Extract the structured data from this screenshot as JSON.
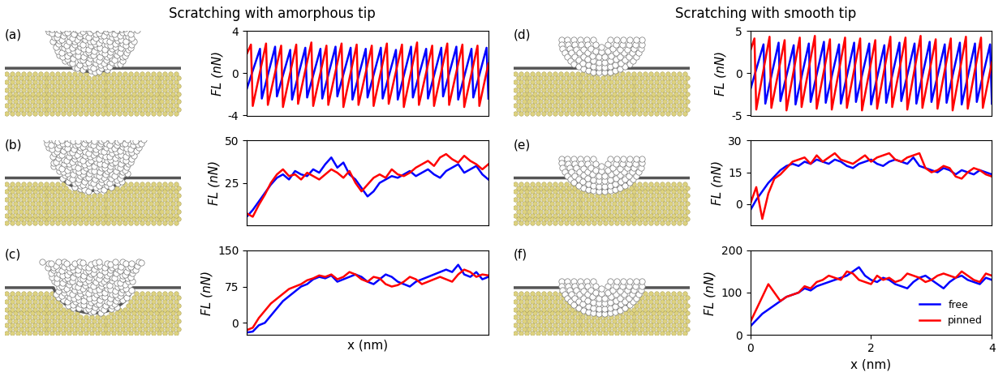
{
  "headings": [
    "Scratching with amorphous tip",
    "Scratching with smooth tip"
  ],
  "chart_data": [
    {
      "panel": "(a)",
      "type": "line",
      "y_label": "FL (nN)",
      "xlim": [
        0,
        4
      ],
      "ylim": [
        -4,
        4
      ],
      "xticks": [
        0,
        2,
        4
      ],
      "yticks": [
        -4,
        0,
        4
      ],
      "tick_labels": "y",
      "series": [
        {
          "name": "free",
          "color": "#0000ff",
          "x": [
            0,
            0.22,
            0.25,
            0.47,
            0.5,
            0.72,
            0.75,
            0.97,
            1.0,
            1.22,
            1.25,
            1.47,
            1.5,
            1.72,
            1.75,
            1.97,
            2.0,
            2.22,
            2.25,
            2.47,
            2.5,
            2.72,
            2.75,
            2.97,
            3.0,
            3.22,
            3.25,
            3.47,
            3.5,
            3.72,
            3.75,
            3.97,
            4.0
          ],
          "values": [
            -1.5,
            2.3,
            -2.4,
            2.5,
            -2.2,
            2.2,
            -2.5,
            2.4,
            -2.3,
            2.3,
            -2.4,
            2.5,
            -2.2,
            2.4,
            -2.5,
            2.3,
            -2.3,
            2.4,
            -2.4,
            2.2,
            -2.5,
            2.5,
            -2.3,
            2.3,
            -2.4,
            2.4,
            -2.2,
            2.5,
            -2.5,
            2.3,
            -2.3,
            2.4,
            -2.4
          ]
        },
        {
          "name": "pinned",
          "color": "#ff0000",
          "x": [
            0,
            0.07,
            0.1,
            0.32,
            0.35,
            0.57,
            0.6,
            0.82,
            0.85,
            1.07,
            1.1,
            1.32,
            1.35,
            1.57,
            1.6,
            1.82,
            1.85,
            2.07,
            2.1,
            2.32,
            2.35,
            2.57,
            2.6,
            2.82,
            2.85,
            3.07,
            3.1,
            3.32,
            3.35,
            3.57,
            3.6,
            3.82,
            3.85,
            4.0
          ],
          "values": [
            1.8,
            2.7,
            -3.1,
            2.8,
            -3.0,
            2.6,
            -3.2,
            2.7,
            -2.9,
            2.9,
            -3.1,
            2.6,
            -3.0,
            2.8,
            -3.2,
            2.7,
            -3.0,
            2.6,
            -3.1,
            2.8,
            -2.9,
            2.7,
            -3.2,
            2.9,
            -3.0,
            2.6,
            -3.1,
            2.8,
            -3.0,
            2.7,
            -3.2,
            2.6,
            -3.1,
            0.9
          ]
        }
      ]
    },
    {
      "panel": "(b)",
      "type": "line",
      "y_label": "FL (nN)",
      "xlim": [
        0,
        4
      ],
      "ylim": [
        0,
        50
      ],
      "xticks": [
        0,
        2,
        4
      ],
      "yticks": [
        25,
        50
      ],
      "tick_labels": "y",
      "x": [
        0,
        0.1,
        0.2,
        0.3,
        0.4,
        0.5,
        0.6,
        0.7,
        0.8,
        0.9,
        1.0,
        1.1,
        1.2,
        1.3,
        1.4,
        1.5,
        1.6,
        1.7,
        1.8,
        1.9,
        2.0,
        2.1,
        2.2,
        2.3,
        2.4,
        2.5,
        2.6,
        2.7,
        2.8,
        2.9,
        3.0,
        3.1,
        3.2,
        3.3,
        3.4,
        3.5,
        3.6,
        3.7,
        3.8,
        3.9,
        4.0
      ],
      "series": [
        {
          "name": "free",
          "color": "#0000ff",
          "values": [
            5,
            9,
            14,
            19,
            24,
            28,
            30,
            27,
            32,
            30,
            29,
            33,
            31,
            36,
            40,
            34,
            37,
            30,
            27,
            22,
            17,
            20,
            25,
            27,
            29,
            28,
            30,
            32,
            29,
            31,
            33,
            30,
            28,
            32,
            34,
            36,
            31,
            33,
            35,
            30,
            27
          ]
        },
        {
          "name": "pinned",
          "color": "#ff0000",
          "values": [
            7,
            5,
            12,
            18,
            25,
            30,
            33,
            29,
            30,
            27,
            31,
            29,
            27,
            30,
            33,
            31,
            28,
            32,
            25,
            20,
            24,
            28,
            30,
            28,
            33,
            30,
            29,
            31,
            34,
            36,
            38,
            35,
            40,
            42,
            39,
            37,
            41,
            38,
            36,
            33,
            36
          ]
        }
      ]
    },
    {
      "panel": "(c)",
      "type": "line",
      "y_label": "FL (nN)",
      "x_label": "x (nm)",
      "xlim": [
        0,
        4
      ],
      "ylim": [
        -25,
        150
      ],
      "xticks": [
        0,
        2,
        4
      ],
      "yticks": [
        0,
        75,
        150
      ],
      "tick_labels": "y",
      "x": [
        0,
        0.1,
        0.2,
        0.3,
        0.4,
        0.5,
        0.6,
        0.7,
        0.8,
        0.9,
        1.0,
        1.1,
        1.2,
        1.3,
        1.4,
        1.5,
        1.6,
        1.7,
        1.8,
        1.9,
        2.0,
        2.1,
        2.2,
        2.3,
        2.4,
        2.5,
        2.6,
        2.7,
        2.8,
        2.9,
        3.0,
        3.1,
        3.2,
        3.3,
        3.4,
        3.5,
        3.6,
        3.7,
        3.8,
        3.9,
        4.0
      ],
      "series": [
        {
          "name": "free",
          "color": "#0000ff",
          "values": [
            -20,
            -18,
            -5,
            0,
            15,
            30,
            45,
            55,
            65,
            75,
            80,
            90,
            95,
            92,
            98,
            85,
            90,
            95,
            100,
            95,
            85,
            80,
            90,
            100,
            95,
            85,
            80,
            75,
            85,
            90,
            95,
            100,
            105,
            110,
            105,
            120,
            100,
            95,
            105,
            90,
            95
          ]
        },
        {
          "name": "pinned",
          "color": "#ff0000",
          "values": [
            -15,
            -10,
            10,
            25,
            40,
            50,
            60,
            70,
            75,
            80,
            88,
            92,
            98,
            95,
            100,
            90,
            95,
            105,
            100,
            90,
            85,
            95,
            92,
            80,
            75,
            78,
            85,
            95,
            90,
            80,
            85,
            90,
            95,
            90,
            85,
            100,
            110,
            105,
            95,
            100,
            98
          ]
        }
      ]
    },
    {
      "panel": "(d)",
      "type": "line",
      "y_label": "FL (nN)",
      "xlim": [
        0,
        4
      ],
      "ylim": [
        -5,
        5
      ],
      "xticks": [
        0,
        2,
        4
      ],
      "yticks": [
        -5,
        0,
        5
      ],
      "tick_labels": "y",
      "series": [
        {
          "name": "free",
          "color": "#0000ff",
          "x": [
            0,
            0.22,
            0.25,
            0.47,
            0.5,
            0.72,
            0.75,
            0.97,
            1.0,
            1.22,
            1.25,
            1.47,
            1.5,
            1.72,
            1.75,
            1.97,
            2.0,
            2.22,
            2.25,
            2.47,
            2.5,
            2.72,
            2.75,
            2.97,
            3.0,
            3.22,
            3.25,
            3.47,
            3.5,
            3.72,
            3.75,
            3.97,
            4.0
          ],
          "values": [
            -2.0,
            3.4,
            -3.6,
            3.6,
            -3.3,
            3.3,
            -3.7,
            3.5,
            -3.4,
            3.7,
            -3.5,
            3.4,
            -3.6,
            3.6,
            -3.4,
            3.5,
            -3.7,
            3.3,
            -3.5,
            3.6,
            -3.3,
            3.5,
            -3.6,
            3.7,
            -3.4,
            3.4,
            -3.5,
            3.6,
            -3.7,
            3.5,
            -3.4,
            3.4,
            -3.6
          ]
        },
        {
          "name": "pinned",
          "color": "#ff0000",
          "x": [
            0,
            0.07,
            0.1,
            0.32,
            0.35,
            0.57,
            0.6,
            0.82,
            0.85,
            1.07,
            1.1,
            1.32,
            1.35,
            1.57,
            1.6,
            1.82,
            1.85,
            2.07,
            2.1,
            2.32,
            2.35,
            2.57,
            2.6,
            2.82,
            2.85,
            3.07,
            3.1,
            3.32,
            3.35,
            3.57,
            3.6,
            3.82,
            3.85,
            4.0
          ],
          "values": [
            2.6,
            4.1,
            -4.3,
            4.3,
            -4.1,
            3.9,
            -4.4,
            4.2,
            -4.0,
            4.4,
            -4.2,
            4.0,
            -4.3,
            4.2,
            -4.1,
            4.1,
            -4.4,
            3.9,
            -4.2,
            4.3,
            -4.0,
            4.2,
            -4.3,
            4.4,
            -4.1,
            4.0,
            -4.2,
            4.1,
            -4.4,
            4.3,
            -4.2,
            4.2,
            -4.1,
            1.3
          ]
        }
      ]
    },
    {
      "panel": "(e)",
      "type": "line",
      "y_label": "FL (nN)",
      "xlim": [
        0,
        4
      ],
      "ylim": [
        -10,
        30
      ],
      "xticks": [
        0,
        2,
        4
      ],
      "yticks": [
        0,
        15,
        30
      ],
      "tick_labels": "y",
      "x": [
        0,
        0.1,
        0.2,
        0.3,
        0.4,
        0.5,
        0.6,
        0.7,
        0.8,
        0.9,
        1.0,
        1.1,
        1.2,
        1.3,
        1.4,
        1.5,
        1.6,
        1.7,
        1.8,
        1.9,
        2.0,
        2.1,
        2.2,
        2.3,
        2.4,
        2.5,
        2.6,
        2.7,
        2.8,
        2.9,
        3.0,
        3.1,
        3.2,
        3.3,
        3.4,
        3.5,
        3.6,
        3.7,
        3.8,
        3.9,
        4.0
      ],
      "series": [
        {
          "name": "free",
          "color": "#0000ff",
          "values": [
            -3,
            2,
            6,
            10,
            13,
            16,
            18,
            19,
            18,
            20,
            19,
            21,
            20,
            19,
            21,
            20,
            18,
            17,
            19,
            20,
            21,
            19,
            18,
            20,
            21,
            20,
            19,
            22,
            18,
            17,
            16,
            15,
            17,
            16,
            14,
            16,
            15,
            14,
            16,
            15,
            14
          ]
        },
        {
          "name": "pinned",
          "color": "#ff0000",
          "values": [
            0,
            8,
            -7,
            5,
            12,
            14,
            17,
            20,
            21,
            22,
            19,
            23,
            20,
            22,
            24,
            21,
            20,
            19,
            21,
            23,
            20,
            22,
            23,
            24,
            21,
            20,
            22,
            23,
            24,
            17,
            15,
            16,
            18,
            17,
            13,
            12,
            15,
            17,
            16,
            14,
            13
          ]
        }
      ]
    },
    {
      "panel": "(f)",
      "type": "line",
      "y_label": "FL (nN)",
      "x_label": "x (nm)",
      "xlim": [
        0,
        4
      ],
      "ylim": [
        0,
        200
      ],
      "xticks": [
        0,
        2,
        4
      ],
      "yticks": [
        0,
        100,
        200
      ],
      "legend": "lower right",
      "x": [
        0,
        0.1,
        0.2,
        0.3,
        0.4,
        0.5,
        0.6,
        0.7,
        0.8,
        0.9,
        1.0,
        1.1,
        1.2,
        1.3,
        1.4,
        1.5,
        1.6,
        1.7,
        1.8,
        1.9,
        2.0,
        2.1,
        2.2,
        2.3,
        2.4,
        2.5,
        2.6,
        2.7,
        2.8,
        2.9,
        3.0,
        3.1,
        3.2,
        3.3,
        3.4,
        3.5,
        3.6,
        3.7,
        3.8,
        3.9,
        4.0
      ],
      "series": [
        {
          "name": "free",
          "color": "#0000ff",
          "values": [
            20,
            35,
            50,
            60,
            70,
            80,
            90,
            95,
            100,
            110,
            105,
            115,
            120,
            125,
            130,
            135,
            140,
            150,
            160,
            140,
            130,
            125,
            135,
            130,
            120,
            115,
            110,
            125,
            135,
            140,
            130,
            120,
            110,
            125,
            135,
            140,
            130,
            125,
            120,
            135,
            130
          ]
        },
        {
          "name": "pinned",
          "color": "#ff0000",
          "values": [
            30,
            60,
            90,
            120,
            100,
            80,
            90,
            95,
            100,
            115,
            110,
            125,
            130,
            140,
            135,
            130,
            150,
            145,
            130,
            125,
            120,
            140,
            130,
            135,
            125,
            130,
            145,
            140,
            135,
            125,
            130,
            140,
            145,
            140,
            135,
            150,
            140,
            130,
            125,
            145,
            140
          ]
        }
      ]
    }
  ]
}
